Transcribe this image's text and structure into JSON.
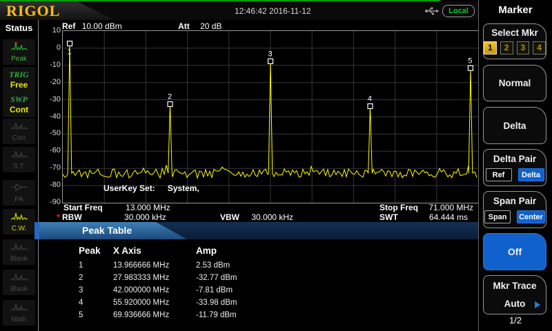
{
  "top_bar": {
    "logo": "RIGOL",
    "clock": "12:46:42 2016-11-12",
    "local_label": "Local",
    "usb_icon": "usb-icon"
  },
  "status_panel": {
    "title": "Status",
    "items": [
      {
        "name": "peak",
        "icon": "peak-icon",
        "label": "Peak",
        "style": "active-green"
      },
      {
        "name": "trig",
        "line1": "TRIG",
        "line2": "Free"
      },
      {
        "name": "swp",
        "line1": "SWP",
        "line2": "Cont"
      },
      {
        "name": "corr",
        "icon": "waveform-icon",
        "label": "Corr",
        "style": "dim"
      },
      {
        "name": "st",
        "icon": "waveform-icon",
        "label": "S.T.",
        "style": "dim"
      },
      {
        "name": "pa",
        "icon": "pa-icon",
        "label": "PA",
        "style": "dim"
      },
      {
        "name": "cw",
        "icon": "waveform-icon",
        "label": "C.W.",
        "style": "active-yellow"
      },
      {
        "name": "blank1",
        "icon": "waveform-icon",
        "label": "Blank",
        "style": "dim"
      },
      {
        "name": "blank2",
        "icon": "waveform-icon",
        "label": "Blank",
        "style": "dim"
      },
      {
        "name": "math",
        "icon": "math-icon",
        "label": "Math",
        "style": "dim"
      }
    ]
  },
  "display": {
    "ref_label": "Ref",
    "ref_value": "10.00 dBm",
    "att_label": "Att",
    "att_value": "20 dB",
    "userkey_label": "UserKey Set:",
    "userkey_value": "System,",
    "start_freq_label": "Start Freq",
    "start_freq": "13.000 MHz",
    "stop_freq_label": "Stop Freq",
    "stop_freq": "71.000 MHz",
    "uncal_star": "*",
    "rbw_label": "RBW",
    "rbw": "30.000 kHz",
    "vbw_label": "VBW",
    "vbw": "30.000 kHz",
    "swt_label": "SWT",
    "swt": "64.444 ms"
  },
  "chart_data": {
    "type": "line",
    "title": "Spectrum trace",
    "x_unit": "MHz",
    "y_unit": "dBm",
    "x_range": [
      13,
      71
    ],
    "y_range": [
      -90,
      10
    ],
    "y_ticks": [
      10,
      0,
      -10,
      -20,
      -30,
      -40,
      -50,
      -60,
      -70,
      -80,
      -90
    ],
    "ref_level_dbm": 10,
    "scale_db_per_div": 10,
    "attenuation_db": 20,
    "noise_floor_dbm": -72,
    "trace_color": "#ffff00",
    "grid": true,
    "markers": [
      {
        "n": 1,
        "freq_mhz": 13.966666,
        "amp_dbm": 2.53
      },
      {
        "n": 2,
        "freq_mhz": 27.983333,
        "amp_dbm": -32.77
      },
      {
        "n": 3,
        "freq_mhz": 42.0,
        "amp_dbm": -7.81
      },
      {
        "n": 4,
        "freq_mhz": 55.92,
        "amp_dbm": -33.98
      },
      {
        "n": 5,
        "freq_mhz": 69.936666,
        "amp_dbm": -11.79
      }
    ]
  },
  "peak_table": {
    "title": "Peak Table",
    "columns": [
      "Peak",
      "X Axis",
      "Amp"
    ],
    "rows": [
      [
        "1",
        "13.966666 MHz",
        "2.53 dBm"
      ],
      [
        "2",
        "27.983333 MHz",
        "-32.77 dBm"
      ],
      [
        "3",
        "42.000000 MHz",
        "-7.81 dBm"
      ],
      [
        "4",
        "55.920000 MHz",
        "-33.98 dBm"
      ],
      [
        "5",
        "69.936666 MHz",
        "-11.79 dBm"
      ]
    ]
  },
  "menu": {
    "title": "Marker",
    "page": "1/2",
    "buttons": [
      {
        "name": "select-mkr",
        "label": "Select Mkr",
        "markers": [
          "1",
          "2",
          "3",
          "4"
        ],
        "selected_marker": "1"
      },
      {
        "name": "normal",
        "label": "Normal"
      },
      {
        "name": "delta",
        "label": "Delta"
      },
      {
        "name": "delta-pair",
        "label": "Delta Pair",
        "options": [
          "Ref",
          "Delta"
        ],
        "selected": "Delta"
      },
      {
        "name": "span-pair",
        "label": "Span Pair",
        "options": [
          "Span",
          "Center"
        ],
        "selected": "Center"
      },
      {
        "name": "off",
        "label": "Off",
        "highlighted": true
      },
      {
        "name": "mkr-trace",
        "label": "Mkr Trace",
        "value": "Auto",
        "has_arrow": true
      }
    ]
  }
}
